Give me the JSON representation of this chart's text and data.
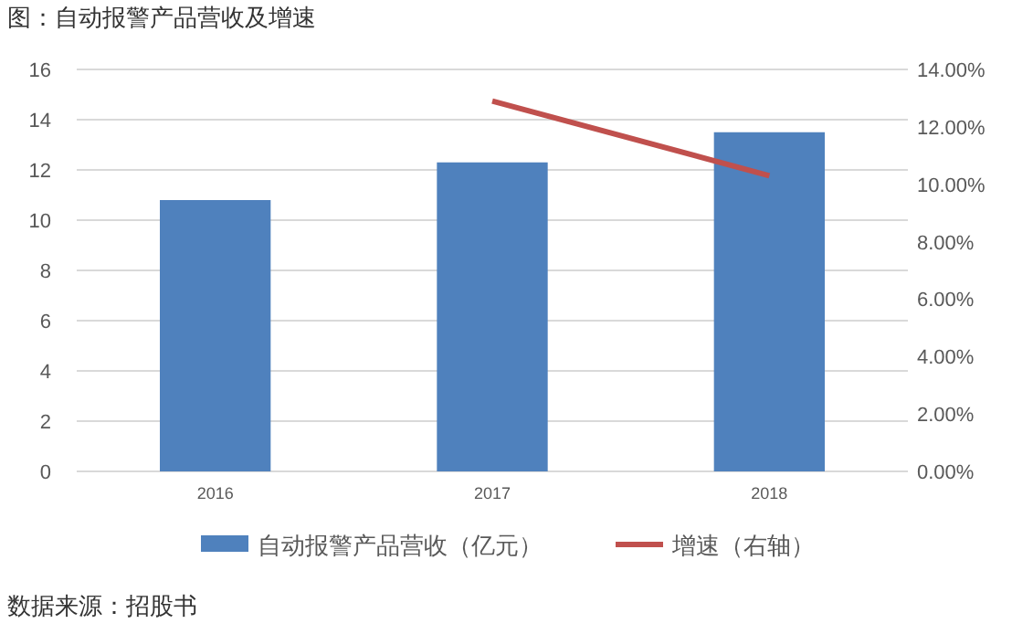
{
  "chart_data": {
    "type": "bar",
    "title": "图：自动报警产品营收及增速",
    "categories": [
      "2016",
      "2017",
      "2018"
    ],
    "series": [
      {
        "name": "自动报警产品营收（亿元）",
        "color": "#4f81bd",
        "values": [
          10.8,
          12.3,
          13.5
        ]
      },
      {
        "name": "增速（右轴）",
        "type": "line",
        "axis": "y2",
        "color": "#c0504d",
        "values": [
          null,
          12.9,
          10.3
        ]
      }
    ],
    "ylim": [
      0,
      16
    ],
    "yticks": [
      0,
      2,
      4,
      6,
      8,
      10,
      12,
      14,
      16
    ],
    "y2lim": [
      0,
      14
    ],
    "y2ticks": [
      {
        "value": 0,
        "label": "0.00%"
      },
      {
        "value": 2,
        "label": "2.00%"
      },
      {
        "value": 4,
        "label": "4.00%"
      },
      {
        "value": 6,
        "label": "6.00%"
      },
      {
        "value": 8,
        "label": "8.00%"
      },
      {
        "value": 10,
        "label": "10.00%"
      },
      {
        "value": 12,
        "label": "12.00%"
      },
      {
        "value": 14,
        "label": "14.00%"
      }
    ],
    "grid": "y",
    "legend": "bottom",
    "annotations": [
      "数据来源：招股书"
    ]
  }
}
